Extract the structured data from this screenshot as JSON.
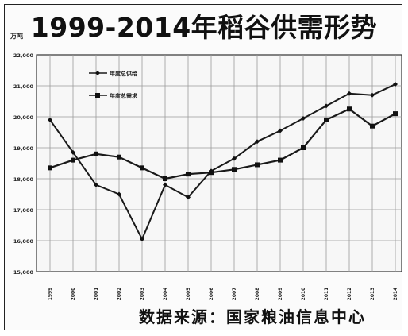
{
  "title": "1999-2014年稻谷供需形势",
  "unit": "万吨",
  "source": "数据来源：国家粮油信息中心",
  "chart_data": {
    "type": "line",
    "title": "1999-2014年稻谷供需形势",
    "ylabel": "万吨",
    "ylim": [
      15000,
      22000
    ],
    "yticks": [
      "15,000",
      "16,000",
      "17,000",
      "18,000",
      "19,000",
      "20,000",
      "21,000",
      "22,000"
    ],
    "categories": [
      "1999",
      "2000",
      "2001",
      "2002",
      "2003",
      "2004",
      "2005",
      "2006",
      "2007",
      "2008",
      "2009",
      "2010",
      "2011",
      "2012",
      "2013",
      "2014"
    ],
    "grid": true,
    "legend_position": "top-left",
    "series": [
      {
        "name": "年度总供给",
        "marker": "diamond",
        "values": [
          19900,
          18850,
          17800,
          17500,
          16050,
          17800,
          17400,
          18250,
          18650,
          19200,
          19550,
          19950,
          20350,
          20750,
          20700,
          21050
        ]
      },
      {
        "name": "年度总需求",
        "marker": "square",
        "values": [
          18350,
          18600,
          18800,
          18700,
          18350,
          18000,
          18150,
          18200,
          18300,
          18450,
          18600,
          19000,
          19900,
          20250,
          19700,
          20100
        ]
      }
    ]
  }
}
